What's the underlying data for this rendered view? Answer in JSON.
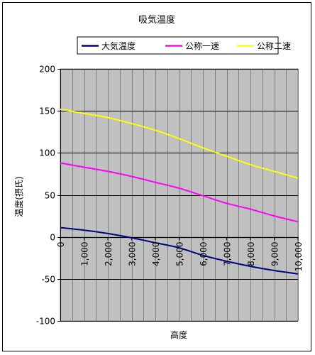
{
  "chart_data": {
    "type": "line",
    "title": "吸気温度",
    "xlabel": "高度",
    "ylabel": "温度(摂氏)",
    "x": [
      0,
      1000,
      2000,
      3000,
      4000,
      5000,
      6000,
      7000,
      8000,
      9000,
      10000
    ],
    "x_tick_labels": [
      "0",
      "1,000",
      "2,000",
      "3,000",
      "4,000",
      "5,000",
      "6,000",
      "7,000",
      "8,000",
      "9,000",
      "10,000"
    ],
    "ylim": [
      -100,
      200
    ],
    "y_ticks": [
      -100,
      -50,
      0,
      50,
      100,
      150,
      200
    ],
    "y_tick_labels": [
      "-100",
      "-50",
      "0",
      "50",
      "100",
      "150",
      "200"
    ],
    "grid": true,
    "legend_position": "top",
    "plot_background": "#c0c0c0",
    "series": [
      {
        "name": "大気温度",
        "color": "#000080",
        "values": [
          11,
          8,
          4,
          -1,
          -7,
          -13,
          -22,
          -29,
          -35,
          -40,
          -44
        ]
      },
      {
        "name": "公称一速",
        "color": "#ff00ff",
        "values": [
          88,
          83,
          78,
          72,
          65,
          58,
          49,
          40,
          33,
          25,
          18
        ]
      },
      {
        "name": "公称二速",
        "color": "#ffff00",
        "values": [
          152,
          147,
          142,
          135,
          127,
          117,
          106,
          96,
          86,
          78,
          70
        ]
      }
    ]
  }
}
